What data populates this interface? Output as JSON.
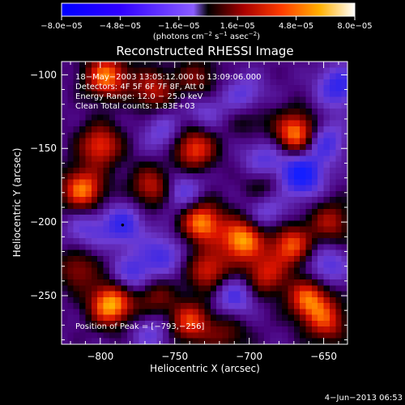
{
  "chart_data": {
    "type": "heatmap",
    "title": "Reconstructed RHESSI Image",
    "xlabel": "Heliocentric X (arcsec)",
    "ylabel": "Heliocentric Y (arcsec)",
    "xlim": [
      -826,
      -634
    ],
    "ylim": [
      -283,
      -91
    ],
    "xticks": [
      -800,
      -750,
      -700,
      -650
    ],
    "xtick_labels": [
      "−800",
      "−750",
      "−700",
      "−650"
    ],
    "yticks": [
      -250,
      -200,
      -150,
      -100
    ],
    "ytick_labels": [
      "−250",
      "−200",
      "−150",
      "−100"
    ],
    "colorbar": {
      "range": [
        -8e-05,
        8e-05
      ],
      "tick_values": [
        -8e-05,
        -4.8e-05,
        -1.6e-05,
        1.6e-05,
        4.8e-05,
        8e-05
      ],
      "tick_labels": [
        "−8.0e−05",
        "−4.8e−05",
        "−1.6e−05",
        "1.6e−05",
        "4.8e−05",
        "8.0e−05"
      ],
      "unit_main": "(photons cm",
      "unit_sup1": "−2",
      "unit_mid": " s",
      "unit_sup2": "−1",
      "unit_mid2": " asec",
      "unit_sup3": "−2",
      "unit_end": ")"
    },
    "annotations": [
      "18−May−2003 13:05:12.000 to 13:09:06.000",
      "Detectors: 4F 5F 6F 7F 8F, Att 0",
      "Energy Range: 12.0 − 25.0 keV",
      "Clean     Total counts: 1.83E+03"
    ],
    "peak_label": "Position of Peak = [−793,−256]",
    "peak": [
      -793,
      -256
    ],
    "marker": [
      -785,
      -202
    ],
    "colormap": "rhessi red-temperature with blue negatives",
    "features": [
      {
        "x": -796,
        "y": -101,
        "v": 0.85
      },
      {
        "x": -765,
        "y": -110,
        "v": 0.55
      },
      {
        "x": -735,
        "y": -103,
        "v": 0.4
      },
      {
        "x": -700,
        "y": -128,
        "v": 0.3
      },
      {
        "x": -668,
        "y": -140,
        "v": 0.95
      },
      {
        "x": -645,
        "y": -200,
        "v": 0.5
      },
      {
        "x": -800,
        "y": -148,
        "v": 0.7
      },
      {
        "x": -812,
        "y": -178,
        "v": 0.85
      },
      {
        "x": -765,
        "y": -176,
        "v": 0.6
      },
      {
        "x": -737,
        "y": -150,
        "v": 0.75
      },
      {
        "x": -732,
        "y": -200,
        "v": 0.9
      },
      {
        "x": -727,
        "y": -233,
        "v": 0.65
      },
      {
        "x": -705,
        "y": -212,
        "v": 0.95
      },
      {
        "x": -690,
        "y": -236,
        "v": 0.6
      },
      {
        "x": -672,
        "y": -216,
        "v": 0.75
      },
      {
        "x": -660,
        "y": -252,
        "v": 0.8
      },
      {
        "x": -648,
        "y": -268,
        "v": 0.6
      },
      {
        "x": -793,
        "y": -256,
        "v": 1.0
      },
      {
        "x": -765,
        "y": -250,
        "v": 0.45
      },
      {
        "x": -740,
        "y": -268,
        "v": 0.7
      },
      {
        "x": -715,
        "y": -276,
        "v": 0.35
      },
      {
        "x": -815,
        "y": -232,
        "v": 0.45
      },
      {
        "x": -690,
        "y": -175,
        "v": 0.35
      },
      {
        "x": -785,
        "y": -202,
        "v": -0.55
      },
      {
        "x": -758,
        "y": -222,
        "v": -0.45
      },
      {
        "x": -777,
        "y": -236,
        "v": -0.5
      },
      {
        "x": -745,
        "y": -180,
        "v": -0.45
      },
      {
        "x": -703,
        "y": -115,
        "v": -0.45
      },
      {
        "x": -690,
        "y": -158,
        "v": -0.45
      },
      {
        "x": -665,
        "y": -168,
        "v": -0.85
      },
      {
        "x": -650,
        "y": -145,
        "v": -0.55
      },
      {
        "x": -710,
        "y": -250,
        "v": -0.5
      },
      {
        "x": -688,
        "y": -192,
        "v": -0.4
      },
      {
        "x": -640,
        "y": -108,
        "v": -0.6
      },
      {
        "x": -648,
        "y": -230,
        "v": -0.45
      },
      {
        "x": -810,
        "y": -205,
        "v": -0.35
      },
      {
        "x": -758,
        "y": -140,
        "v": -0.35
      },
      {
        "x": -730,
        "y": -125,
        "v": -0.3
      },
      {
        "x": -765,
        "y": -275,
        "v": -0.35
      }
    ]
  },
  "footer": {
    "date": "4−Jun−2013 06:53"
  }
}
